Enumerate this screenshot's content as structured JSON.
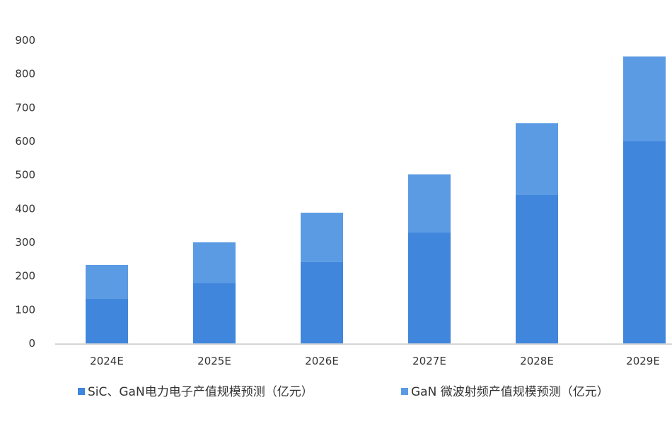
{
  "chart_data": {
    "type": "bar",
    "stacked": true,
    "categories": [
      "2024E",
      "2025E",
      "2026E",
      "2027E",
      "2028E",
      "2029E"
    ],
    "series": [
      {
        "name": "SiC、GaN电力电子产值规模预测（亿元）",
        "color": "#3f86dc",
        "values": [
          133,
          180,
          242,
          330,
          442,
          600
        ]
      },
      {
        "name": "GaN 微波射频产值规模预测（亿元）",
        "color": "#5b9be4",
        "values": [
          100,
          120,
          146,
          172,
          212,
          252
        ]
      }
    ],
    "ylim": [
      0,
      900
    ],
    "yticks": [
      0,
      100,
      200,
      300,
      400,
      500,
      600,
      700,
      800,
      900
    ],
    "grid": false,
    "legend_position": "bottom"
  }
}
